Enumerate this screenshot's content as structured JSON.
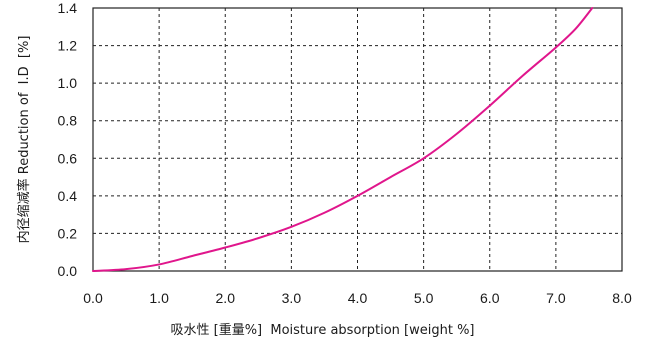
{
  "chart_data": {
    "type": "line",
    "xlabel": "吸水性 [重量%]  Moisture absorption [weight %]",
    "ylabel": "内径缩减率 Reduction of  I.D  [%]",
    "xlim": [
      0,
      8
    ],
    "ylim": [
      0,
      1.4
    ],
    "x_ticks": [
      "0.0",
      "1.0",
      "2.0",
      "3.0",
      "4.0",
      "5.0",
      "6.0",
      "7.0",
      "8.0"
    ],
    "y_ticks": [
      "0.0",
      "0.2",
      "0.4",
      "0.6",
      "0.8",
      "1.0",
      "1.2",
      "1.4"
    ],
    "grid": true,
    "series": [
      {
        "color": "#e0168c",
        "x": [
          0.0,
          0.5,
          1.0,
          1.5,
          2.0,
          2.5,
          3.0,
          3.5,
          4.0,
          4.5,
          5.0,
          5.5,
          6.0,
          6.5,
          7.0,
          7.3,
          7.55
        ],
        "y": [
          0.0,
          0.01,
          0.035,
          0.08,
          0.125,
          0.175,
          0.235,
          0.31,
          0.4,
          0.5,
          0.6,
          0.73,
          0.88,
          1.04,
          1.19,
          1.29,
          1.4
        ]
      }
    ]
  }
}
